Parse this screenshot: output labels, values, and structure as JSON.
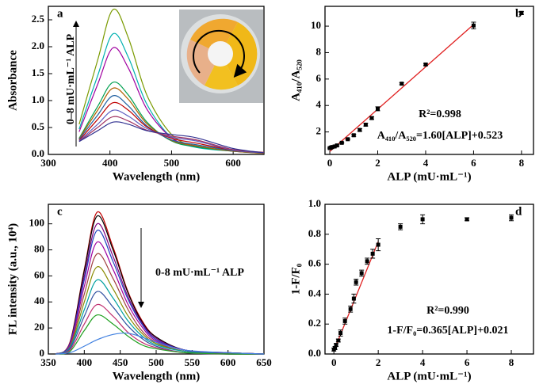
{
  "chart_data": [
    {
      "type": "line",
      "panel_label": "a",
      "x_label": "Wavelength (nm)",
      "y_label": "Absorbance",
      "annotations": [
        "0–8 mU·mL⁻¹ ALP"
      ],
      "x": [
        350,
        380,
        405,
        430,
        460,
        500,
        540,
        600,
        650
      ],
      "xlim": [
        300,
        650
      ],
      "xticks": [
        300,
        400,
        500,
        600
      ],
      "ylim": [
        0,
        2.75
      ],
      "yticks": [
        {
          "value": 0,
          "label": "0.0"
        },
        {
          "value": 0.5,
          "label": "0.5"
        },
        {
          "value": 1,
          "label": "1.0"
        },
        {
          "value": 1.5,
          "label": "1.5"
        },
        {
          "value": 2,
          "label": "2.0"
        },
        {
          "value": 2.5,
          "label": "2.5"
        }
      ],
      "series": [
        {
          "color": "#7a9a00",
          "values": [
            0.56,
            1.75,
            2.69,
            2.16,
            1.1,
            0.37,
            0.15,
            0.07,
            0.03
          ]
        },
        {
          "color": "#00b0b0",
          "values": [
            0.47,
            1.46,
            2.24,
            1.8,
            0.93,
            0.31,
            0.13,
            0.06,
            0.03
          ]
        },
        {
          "color": "#a000a0",
          "values": [
            0.42,
            1.3,
            1.98,
            1.6,
            0.84,
            0.31,
            0.15,
            0.06,
            0.03
          ]
        },
        {
          "color": "#00a050",
          "values": [
            0.3,
            0.89,
            1.34,
            1.1,
            0.6,
            0.25,
            0.14,
            0.06,
            0.02
          ]
        },
        {
          "color": "#b06000",
          "values": [
            0.29,
            0.82,
            1.23,
            1.02,
            0.57,
            0.26,
            0.16,
            0.06,
            0.02
          ]
        },
        {
          "color": "#2060a0",
          "values": [
            0.28,
            0.73,
            1.09,
            0.9,
            0.53,
            0.27,
            0.18,
            0.07,
            0.03
          ]
        },
        {
          "color": "#c00000",
          "values": [
            0.26,
            0.65,
            0.96,
            0.82,
            0.51,
            0.3,
            0.21,
            0.08,
            0.03
          ]
        },
        {
          "color": "#6060c0",
          "values": [
            0.25,
            0.56,
            0.82,
            0.71,
            0.48,
            0.32,
            0.25,
            0.08,
            0.03
          ]
        },
        {
          "color": "#a03060",
          "values": [
            0.24,
            0.5,
            0.7,
            0.62,
            0.45,
            0.34,
            0.27,
            0.09,
            0.04
          ]
        },
        {
          "color": "#303090",
          "values": [
            0.24,
            0.44,
            0.6,
            0.56,
            0.44,
            0.37,
            0.31,
            0.11,
            0.03
          ]
        }
      ]
    },
    {
      "type": "scatter",
      "panel_label": "b",
      "x_label": "ALP (mU·mL⁻¹)",
      "y_label": "A₄₁₀/A₅₂₀",
      "annotations": [
        "R²=0.998",
        "A₄₁₀/A₅₂₀=1.60[ALP]+0.523"
      ],
      "x": [
        0,
        0.05,
        0.1,
        0.2,
        0.3,
        0.5,
        0.75,
        1,
        1.25,
        1.5,
        1.75,
        2,
        3,
        4,
        6,
        8
      ],
      "y": [
        0.78,
        0.82,
        0.86,
        0.9,
        0.98,
        1.18,
        1.45,
        1.75,
        2.15,
        2.55,
        3.05,
        3.75,
        5.65,
        7.1,
        10.05,
        11.0
      ],
      "errors": [
        0.05,
        0.05,
        0.05,
        0.05,
        0.05,
        0.05,
        0.05,
        0.08,
        0.1,
        0.1,
        0.1,
        0.15,
        0.08,
        0.08,
        0.25,
        0.12
      ],
      "color": "#000000",
      "fit": {
        "x": [
          0,
          6
        ],
        "y": [
          0.523,
          10.123
        ],
        "color": "#e02020"
      },
      "xlim": [
        -0.2,
        8.5
      ],
      "xticks": [
        0,
        2,
        4,
        6,
        8
      ],
      "ylim": [
        0.3,
        11.5
      ],
      "yticks": [
        2,
        4,
        6,
        8,
        10
      ]
    },
    {
      "type": "line",
      "panel_label": "c",
      "x_label": "Wavelength (nm)",
      "y_label": "FL intensity (a.u., 10⁴)",
      "annotations": [
        "0-8 mU·mL⁻¹ ALP"
      ],
      "x": [
        360,
        380,
        400,
        418,
        440,
        460,
        480,
        500,
        540,
        600,
        650
      ],
      "xlim": [
        350,
        650
      ],
      "xticks": [
        350,
        400,
        450,
        500,
        550,
        600,
        650
      ],
      "ylim": [
        0,
        115
      ],
      "yticks": [
        0,
        20,
        40,
        60,
        80,
        100
      ],
      "series": [
        {
          "color": "#c00000",
          "values": [
            0,
            9,
            65,
            109,
            82,
            49,
            26,
            13,
            3,
            1,
            0
          ]
        },
        {
          "color": "#000000",
          "values": [
            0,
            8,
            64,
            106,
            80,
            48,
            25,
            13,
            3,
            1,
            0
          ]
        },
        {
          "color": "#800080",
          "values": [
            0,
            8,
            60,
            100,
            75,
            45,
            24,
            12,
            3,
            1,
            0
          ]
        },
        {
          "color": "#2040c0",
          "values": [
            0,
            8,
            57,
            95,
            71,
            43,
            23,
            11,
            3,
            0,
            0
          ]
        },
        {
          "color": "#a000a0",
          "values": [
            0,
            7,
            52,
            86,
            65,
            39,
            21,
            10,
            3,
            0,
            0
          ]
        },
        {
          "color": "#a04040",
          "values": [
            0,
            6,
            46,
            77,
            58,
            35,
            18,
            9,
            2,
            0,
            0
          ]
        },
        {
          "color": "#8a8a00",
          "values": [
            0,
            5,
            40,
            67,
            50,
            30,
            16,
            8,
            2,
            0,
            0
          ]
        },
        {
          "color": "#00a0a0",
          "values": [
            0,
            5,
            34,
            57,
            43,
            26,
            14,
            7,
            2,
            0,
            0
          ]
        },
        {
          "color": "#3050a0",
          "values": [
            0,
            4,
            29,
            48,
            36,
            22,
            12,
            6,
            1,
            0,
            0
          ]
        },
        {
          "color": "#c03070",
          "values": [
            0,
            3,
            23,
            38,
            29,
            17,
            9,
            5,
            1,
            0,
            0
          ]
        },
        {
          "color": "#20a020",
          "values": [
            0,
            2,
            18,
            30,
            23,
            14,
            7,
            4,
            1,
            0,
            0
          ]
        },
        {
          "color": "#4080e0",
          "values": [
            0,
            1,
            6,
            11,
            15,
            16,
            13,
            9,
            3,
            1,
            0
          ]
        }
      ]
    },
    {
      "type": "scatter",
      "panel_label": "d",
      "x_label": "ALP (mU·mL⁻¹)",
      "y_label": "1-F/F₀",
      "annotations": [
        "R²=0.990",
        "1-F/F₀=0.365[ALP]+0.021"
      ],
      "x": [
        0,
        0.05,
        0.1,
        0.2,
        0.3,
        0.5,
        0.75,
        0.9,
        1,
        1.25,
        1.5,
        1.75,
        2,
        3,
        4,
        6,
        8
      ],
      "y": [
        0.03,
        0.04,
        0.06,
        0.09,
        0.14,
        0.22,
        0.3,
        0.37,
        0.48,
        0.54,
        0.62,
        0.67,
        0.73,
        0.85,
        0.9,
        0.9,
        0.91
      ],
      "errors": [
        0.01,
        0.01,
        0.01,
        0.01,
        0.02,
        0.02,
        0.02,
        0.03,
        0.02,
        0.02,
        0.02,
        0.03,
        0.04,
        0.02,
        0.03,
        0.01,
        0.02
      ],
      "color": "#000000",
      "fit": {
        "x": [
          0,
          2
        ],
        "y": [
          0.021,
          0.751
        ],
        "color": "#e02020"
      },
      "xlim": [
        -0.4,
        9
      ],
      "xticks": [
        0,
        2,
        4,
        6,
        8
      ],
      "ylim": [
        0,
        1.0
      ],
      "yticks": [
        {
          "value": 0,
          "label": "0.0"
        },
        {
          "value": 0.2,
          "label": "0.2"
        },
        {
          "value": 0.4,
          "label": "0.4"
        },
        {
          "value": 0.6,
          "label": "0.6"
        },
        {
          "value": 0.8,
          "label": "0.8"
        },
        {
          "value": 1.0,
          "label": "1.0"
        }
      ]
    }
  ]
}
